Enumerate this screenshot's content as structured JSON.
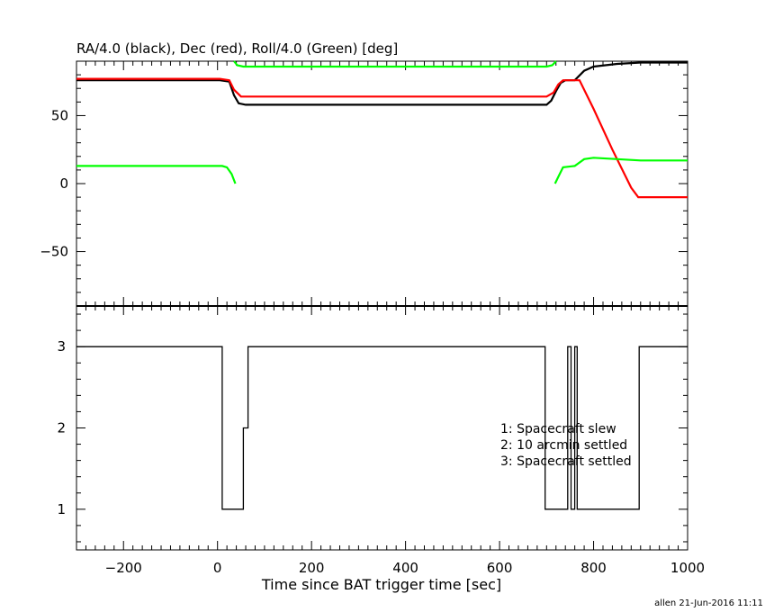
{
  "chart_data": [
    {
      "type": "line",
      "title": "RA/4.0 (black), Dec (red), Roll/4.0 (Green) [deg]",
      "xlim": [
        -300,
        1000
      ],
      "ylim": [
        -90,
        90
      ],
      "y_ticks": [
        -50,
        0,
        50
      ],
      "grid": false,
      "series": [
        {
          "color": "#000000",
          "points": [
            [
              -300,
              76
            ],
            [
              5,
              76
            ],
            [
              25,
              75
            ],
            [
              35,
              65
            ],
            [
              45,
              59
            ],
            [
              60,
              58
            ],
            [
              350,
              58
            ],
            [
              700,
              58
            ],
            [
              710,
              61
            ],
            [
              720,
              68
            ],
            [
              730,
              74
            ],
            [
              740,
              76
            ],
            [
              760,
              76
            ],
            [
              780,
              83
            ],
            [
              800,
              86
            ],
            [
              850,
              88
            ],
            [
              900,
              89
            ],
            [
              1000,
              89
            ]
          ]
        },
        {
          "color": "#ff0000",
          "points": [
            [
              -300,
              77
            ],
            [
              5,
              77
            ],
            [
              25,
              76
            ],
            [
              35,
              69
            ],
            [
              50,
              64
            ],
            [
              350,
              64
            ],
            [
              700,
              64
            ],
            [
              715,
              67
            ],
            [
              725,
              73
            ],
            [
              735,
              76
            ],
            [
              770,
              76
            ],
            [
              800,
              55
            ],
            [
              840,
              25
            ],
            [
              880,
              -3
            ],
            [
              895,
              -10
            ],
            [
              1000,
              -10
            ]
          ]
        },
        {
          "color": "#00ff00",
          "segments": [
            [
              [
                -300,
                13
              ],
              [
                10,
                13
              ],
              [
                20,
                12
              ],
              [
                30,
                7
              ],
              [
                38,
                0
              ]
            ],
            [
              [
                35,
                90
              ],
              [
                42,
                87
              ],
              [
                55,
                86
              ],
              [
                350,
                86
              ],
              [
                700,
                86
              ],
              [
                712,
                87
              ],
              [
                720,
                90
              ]
            ],
            [
              [
                718,
                0
              ],
              [
                725,
                5
              ],
              [
                735,
                12
              ],
              [
                760,
                13
              ],
              [
                780,
                18
              ],
              [
                800,
                19
              ],
              [
                850,
                18
              ],
              [
                900,
                17
              ],
              [
                1000,
                17
              ]
            ]
          ]
        }
      ]
    },
    {
      "type": "step",
      "xlabel": "Time since BAT trigger time [sec]",
      "xlim": [
        -300,
        1000
      ],
      "ylim": [
        0.5,
        3.5
      ],
      "x_ticks": [
        -200,
        0,
        200,
        400,
        600,
        800,
        1000
      ],
      "y_ticks": [
        1,
        2,
        3
      ],
      "grid": false,
      "legend_placement": "middle-right",
      "legend": [
        "1: Spacecraft slew",
        "2: 10 arcmin settled",
        "3: Spacecraft settled"
      ],
      "steps": [
        [
          -300,
          3
        ],
        [
          10,
          1
        ],
        [
          55,
          2
        ],
        [
          65,
          3
        ],
        [
          697,
          1
        ],
        [
          745,
          3
        ],
        [
          752,
          1
        ],
        [
          760,
          3
        ],
        [
          765,
          1
        ],
        [
          897,
          3
        ],
        [
          1000,
          3
        ]
      ]
    }
  ],
  "footer": "allen 21-Jun-2016 11:11"
}
